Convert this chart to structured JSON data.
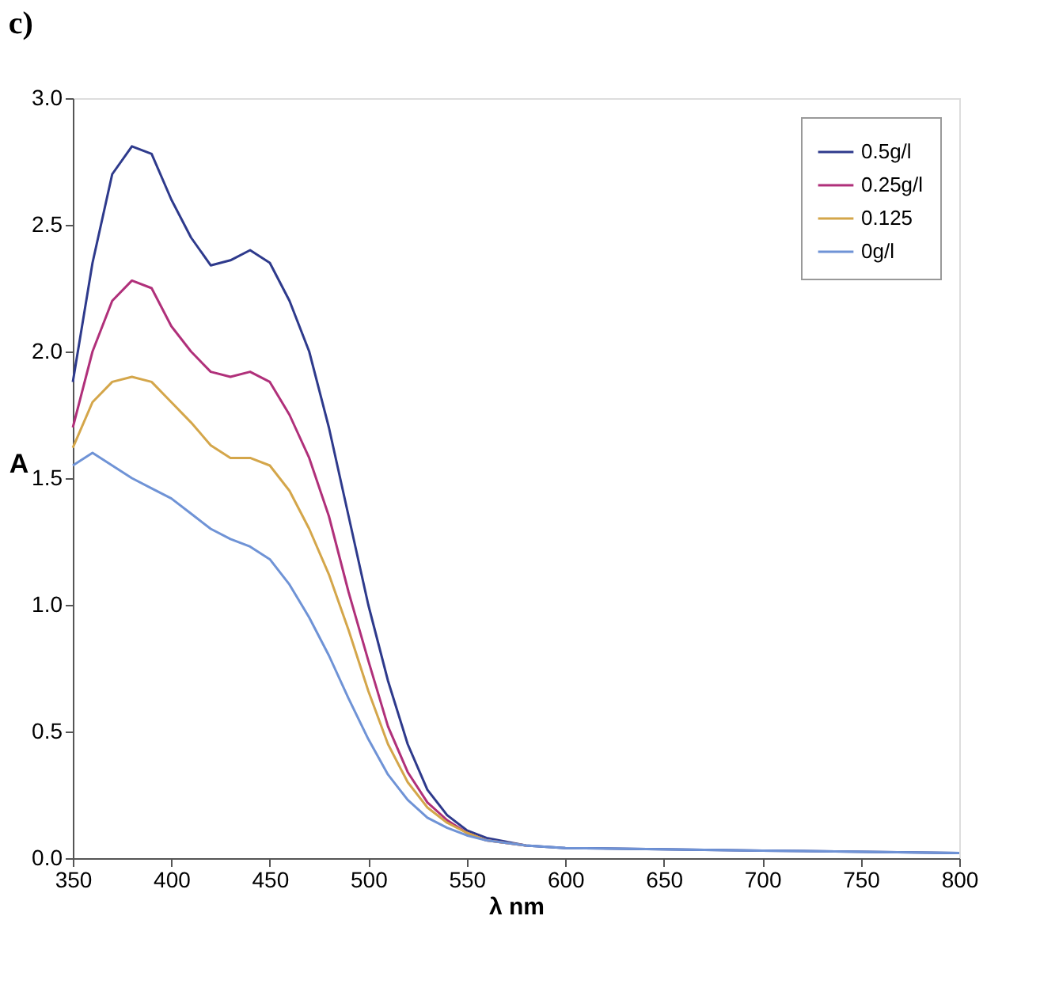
{
  "chart_data": {
    "type": "line",
    "title": "c)",
    "xlabel": "λ nm",
    "ylabel": "A",
    "x": [
      350,
      360,
      370,
      380,
      390,
      400,
      410,
      420,
      430,
      440,
      450,
      460,
      470,
      480,
      490,
      500,
      510,
      520,
      530,
      540,
      550,
      560,
      580,
      600,
      700,
      800
    ],
    "series": [
      {
        "name": "0.5g/l",
        "color": "#2e3a8c",
        "values": [
          1.88,
          2.35,
          2.7,
          2.81,
          2.78,
          2.6,
          2.45,
          2.34,
          2.36,
          2.4,
          2.35,
          2.2,
          2.0,
          1.7,
          1.35,
          1.0,
          0.7,
          0.45,
          0.27,
          0.17,
          0.11,
          0.08,
          0.05,
          0.04,
          0.03,
          0.02
        ]
      },
      {
        "name": "0.25g/l",
        "color": "#b0307a",
        "values": [
          1.7,
          2.0,
          2.2,
          2.28,
          2.25,
          2.1,
          2.0,
          1.92,
          1.9,
          1.92,
          1.88,
          1.75,
          1.58,
          1.35,
          1.05,
          0.78,
          0.52,
          0.34,
          0.22,
          0.15,
          0.1,
          0.07,
          0.05,
          null,
          null,
          null
        ]
      },
      {
        "name": "0.125",
        "color": "#d4a64a",
        "values": [
          1.62,
          1.8,
          1.88,
          1.9,
          1.88,
          1.8,
          1.72,
          1.63,
          1.58,
          1.58,
          1.55,
          1.45,
          1.3,
          1.12,
          0.9,
          0.66,
          0.45,
          0.3,
          0.2,
          0.14,
          0.1,
          0.07,
          0.05,
          null,
          null,
          null
        ]
      },
      {
        "name": "0g/l",
        "color": "#6f93d6",
        "values": [
          1.55,
          1.6,
          1.55,
          1.5,
          1.46,
          1.42,
          1.36,
          1.3,
          1.26,
          1.23,
          1.18,
          1.08,
          0.95,
          0.8,
          0.63,
          0.47,
          0.33,
          0.23,
          0.16,
          0.12,
          0.09,
          0.07,
          0.05,
          0.04,
          0.03,
          0.02
        ]
      }
    ],
    "xlim": [
      350,
      800
    ],
    "xticks": [
      350,
      400,
      450,
      500,
      550,
      600,
      650,
      700,
      750,
      800
    ],
    "ylim": [
      0,
      3.0
    ],
    "yticks": [
      {
        "value": 0,
        "label": "0.0"
      },
      {
        "value": 0.5,
        "label": "0.5"
      },
      {
        "value": 1,
        "label": "1.0"
      },
      {
        "value": 1.5,
        "label": "1.5"
      },
      {
        "value": 2,
        "label": "2.0"
      },
      {
        "value": 2.5,
        "label": "2.5"
      },
      {
        "value": 3,
        "label": "3.0"
      }
    ],
    "grid": false,
    "legend": "top right",
    "marker": "none",
    "line_style": "solid"
  }
}
